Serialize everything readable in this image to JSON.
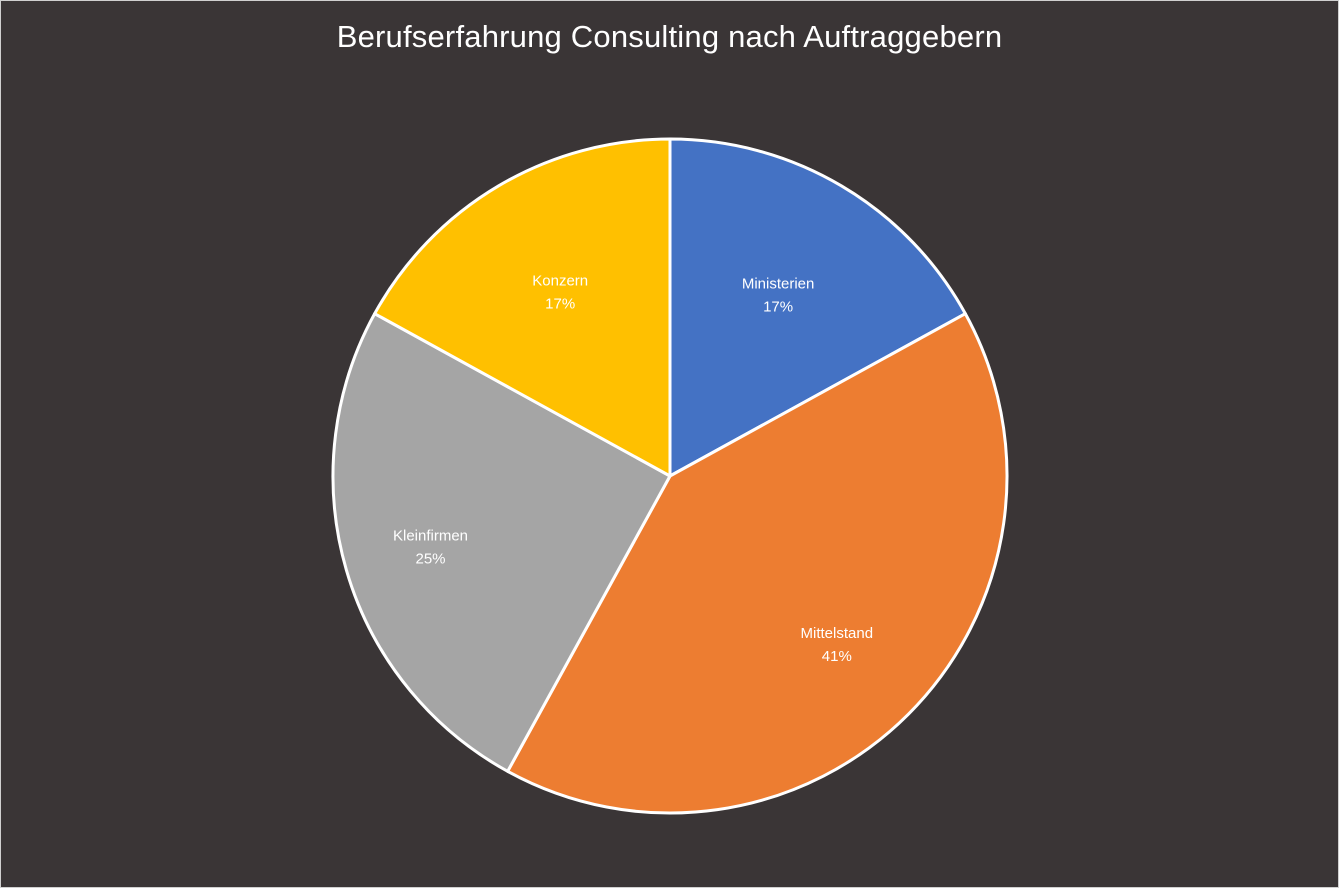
{
  "chart_data": {
    "type": "pie",
    "title": "Berufserfahrung Consulting nach Auftraggebern",
    "slices": [
      {
        "name": "Ministerien",
        "label": "17%",
        "value": 17,
        "color": "#4472c4"
      },
      {
        "name": "Mittelstand",
        "label": "41%",
        "value": 41,
        "color": "#ed7d31"
      },
      {
        "name": "Kleinfirmen",
        "label": "25%",
        "value": 25,
        "color": "#a5a5a5"
      },
      {
        "name": "Konzern",
        "label": "17%",
        "value": 17,
        "color": "#ffc000"
      }
    ],
    "legend": "none",
    "data_labels": "inside",
    "background_color": "#3a3536",
    "slice_border_color": "#ffffff"
  }
}
